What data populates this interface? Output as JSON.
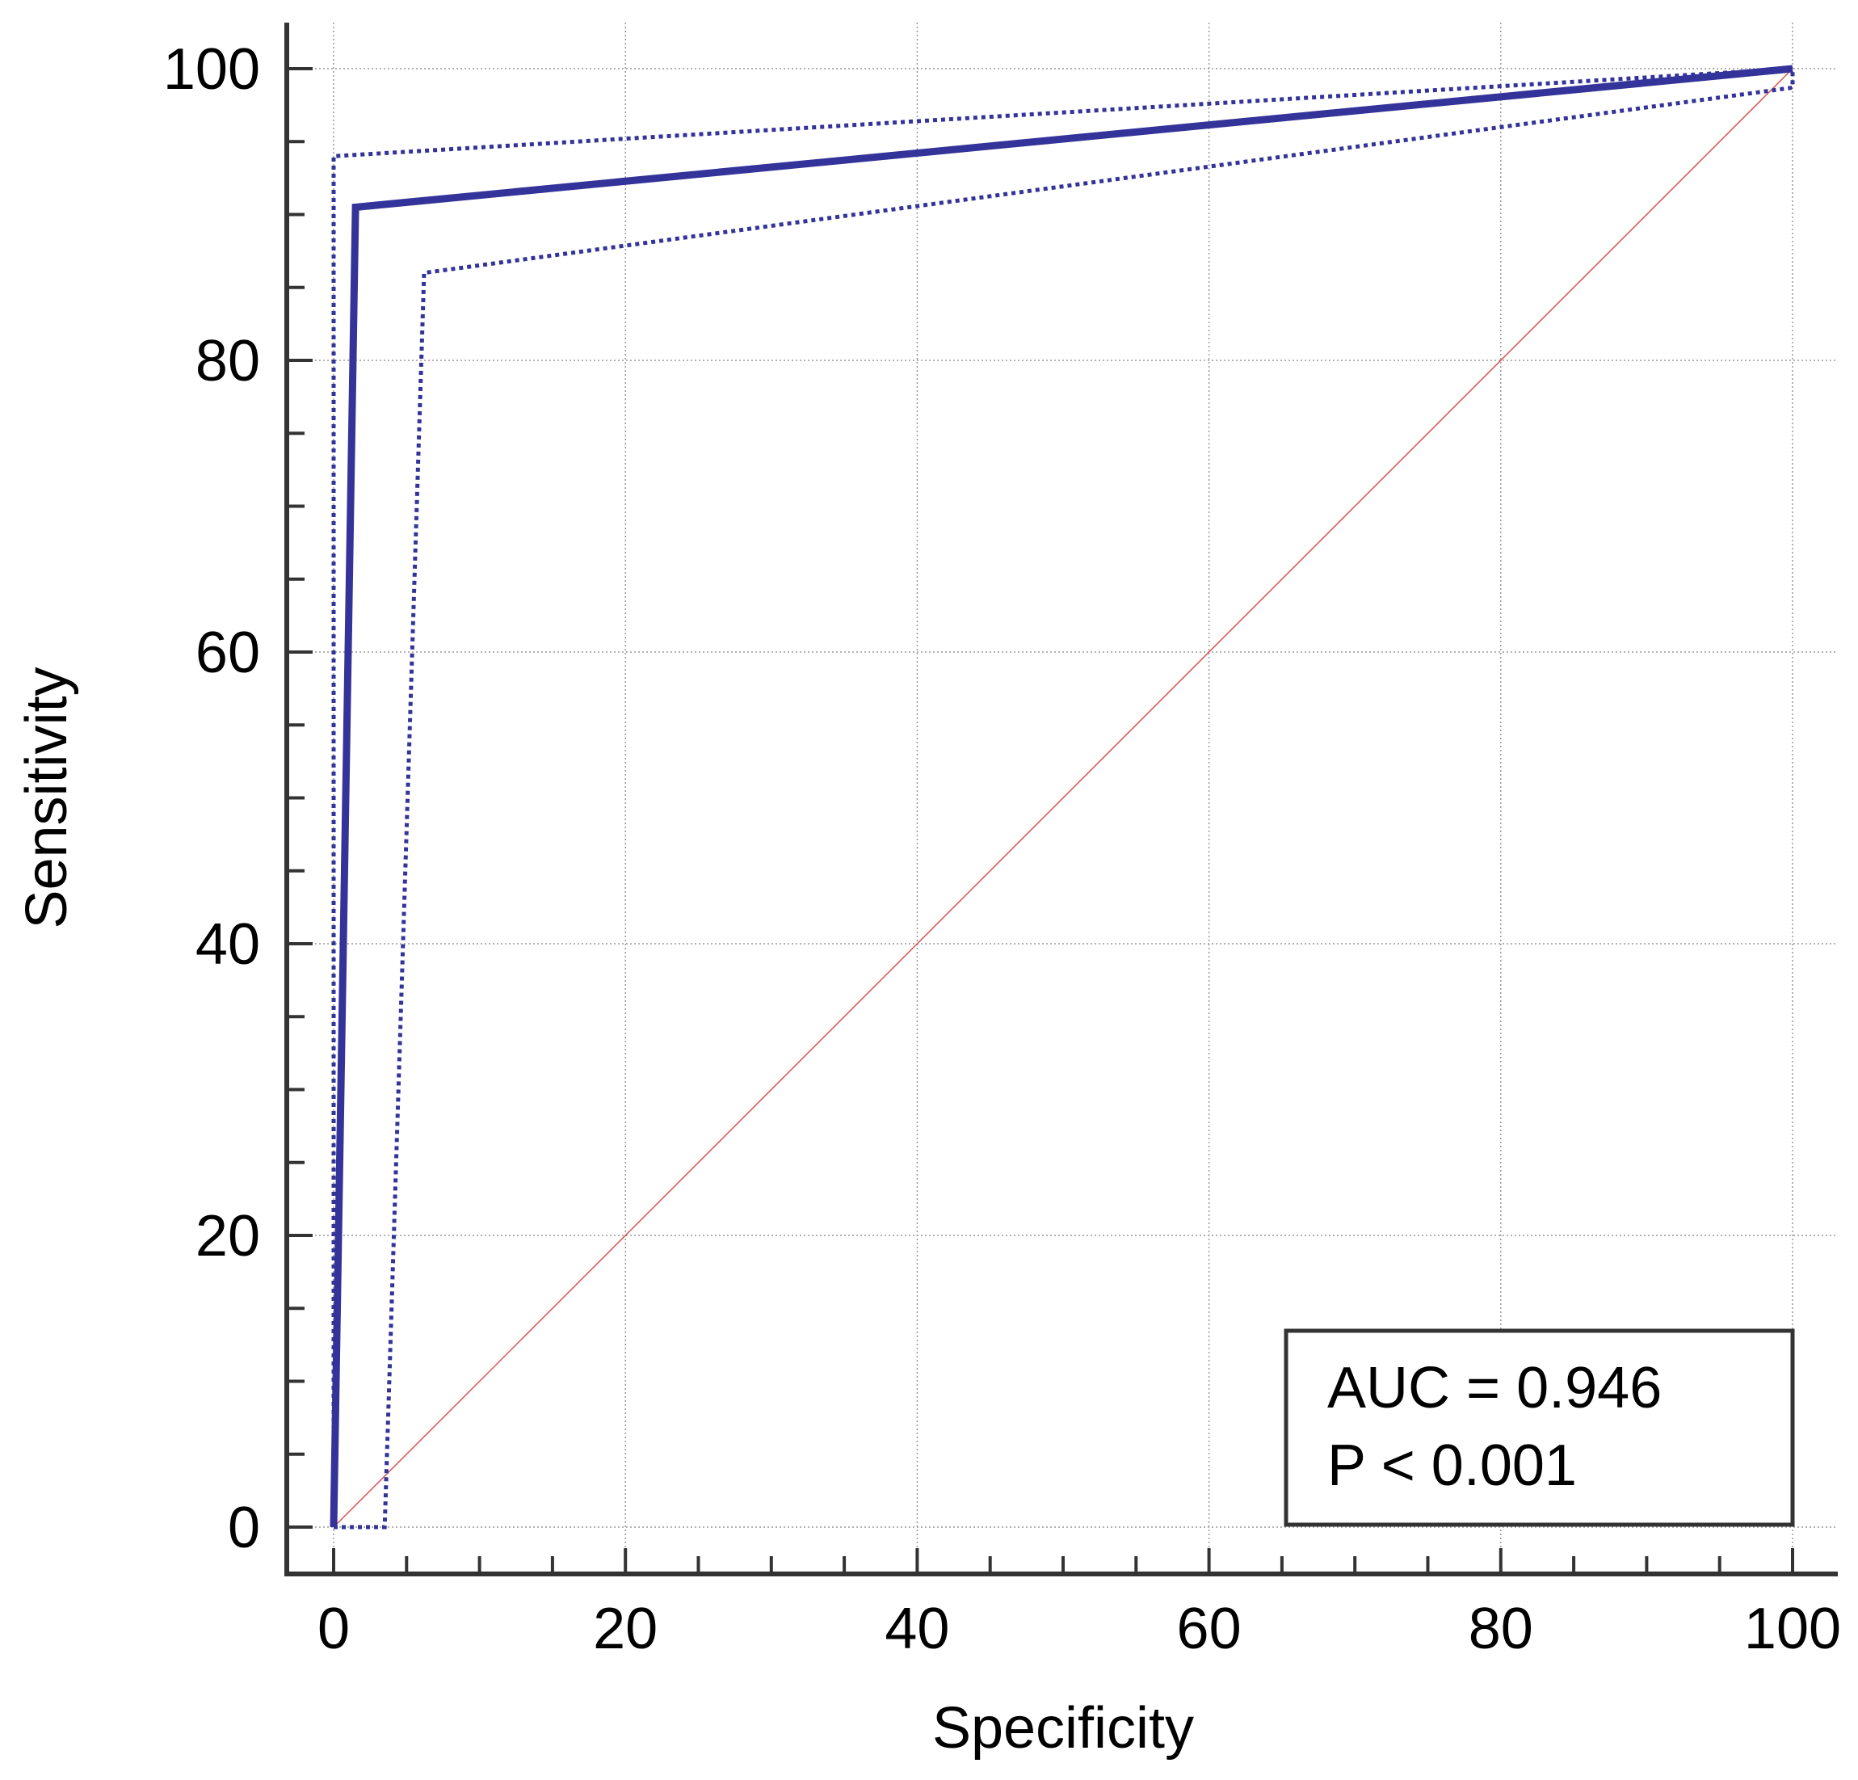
{
  "chart_data": {
    "type": "line",
    "title": "",
    "xlabel": "Specificity",
    "ylabel": "Sensitivity",
    "xlim": [
      0,
      100
    ],
    "ylim": [
      0,
      100
    ],
    "x_ticks": [
      "0",
      "20",
      "40",
      "60",
      "80",
      "100"
    ],
    "y_ticks": [
      "0",
      "20",
      "40",
      "60",
      "80",
      "100"
    ],
    "x_tick_values": [
      0,
      20,
      40,
      60,
      80,
      100
    ],
    "y_tick_values": [
      0,
      20,
      40,
      60,
      80,
      100
    ],
    "grid": true,
    "series": [
      {
        "style": "solid",
        "color": "#333399",
        "x": [
          0,
          1.5,
          100
        ],
        "y": [
          0,
          90.5,
          100
        ]
      },
      {
        "style": "dotted",
        "color": "#333399",
        "x": [
          0,
          0,
          100,
          100
        ],
        "y": [
          0,
          94,
          100,
          100
        ]
      },
      {
        "style": "dotted",
        "color": "#333399",
        "x": [
          0,
          3.5,
          6.2,
          100,
          100
        ],
        "y": [
          0,
          0,
          86,
          98.7,
          100
        ]
      },
      {
        "style": "reference",
        "color": "#d9534f",
        "x": [
          0,
          100
        ],
        "y": [
          0,
          100
        ]
      }
    ],
    "annotations": [
      "AUC = 0.946",
      "P < 0.001"
    ],
    "legend_placement": "bottom-right"
  }
}
